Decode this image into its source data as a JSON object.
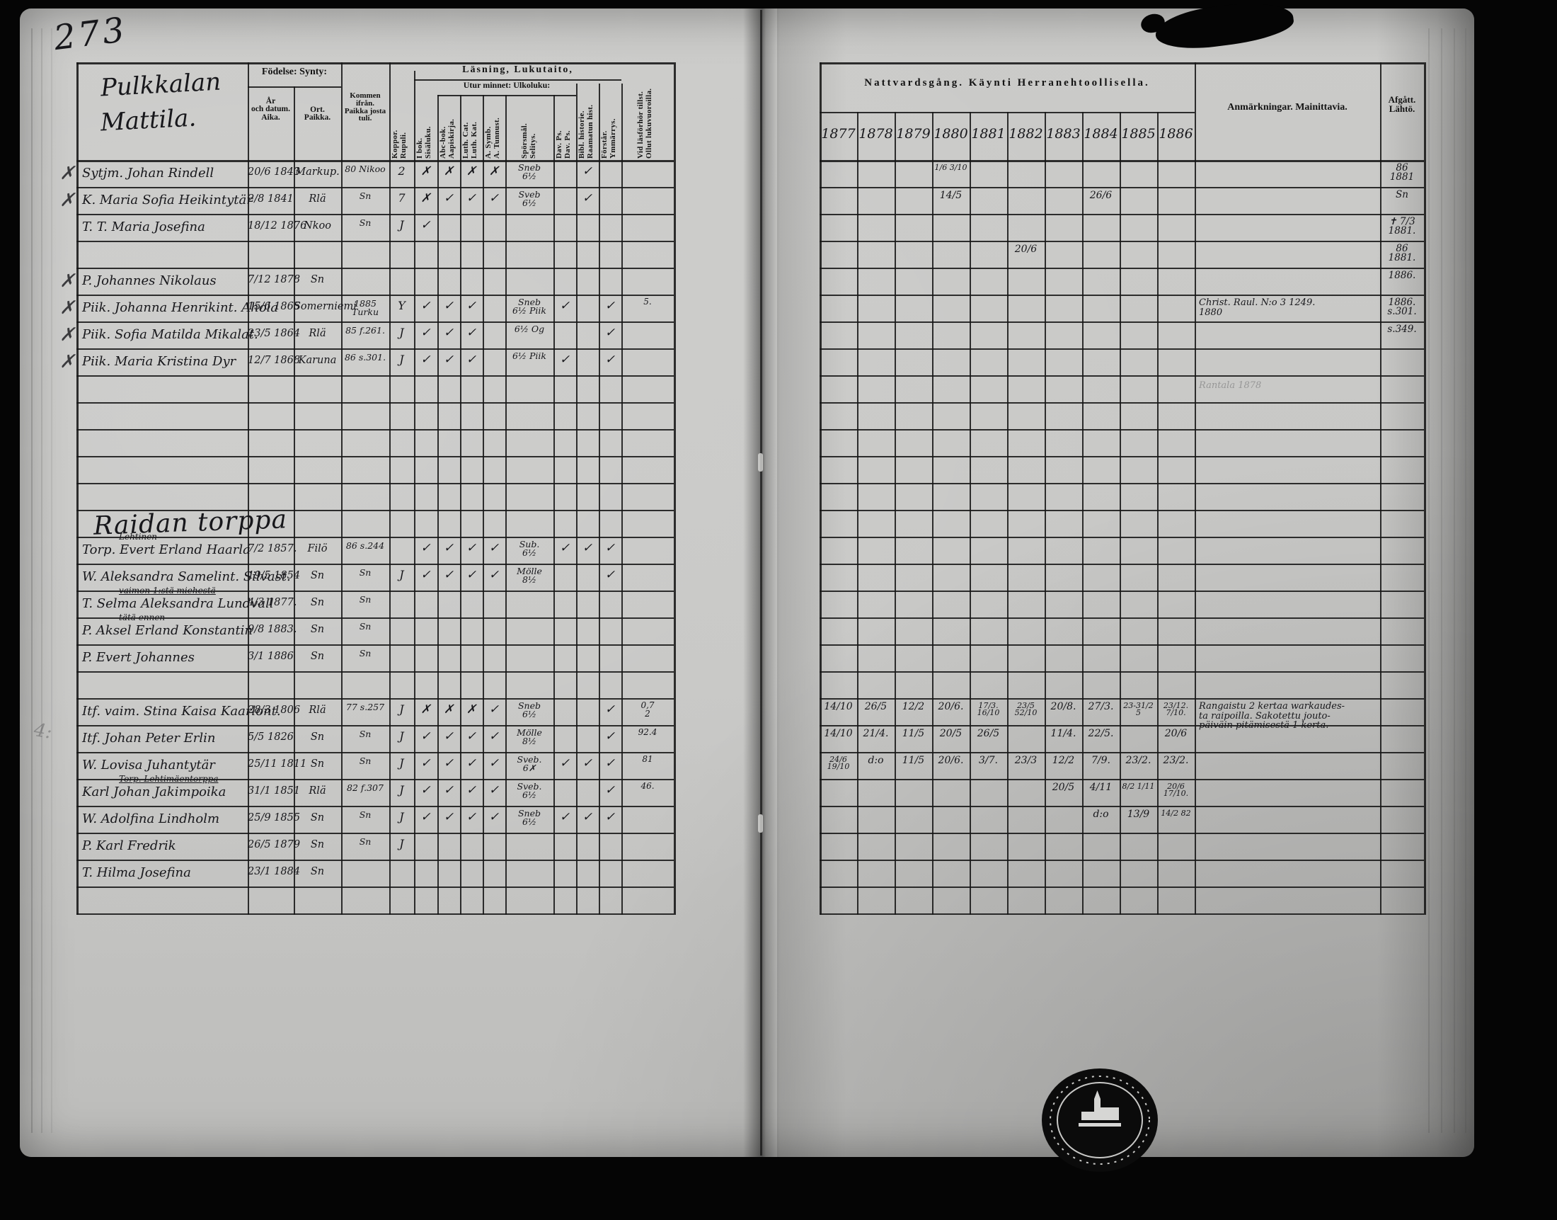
{
  "page": {
    "number": "273"
  },
  "left_page": {
    "heading_line1": "Pulkkalan",
    "heading_line2": "Mattila.",
    "h_fodelse": "Födelse:   Synty:",
    "h_ar": "År\noch datum.\nAika.",
    "h_ort": "Ort.\nPaikka.",
    "h_kommen": "Kommen ifrån.\nPaikka josta\ntuli.",
    "h_lasning": "Läsning,   Lukutaito,",
    "h_utur": "Utur minnet:   Ulkoluku:",
    "cols": [
      {
        "label": "Koppor.\nRupuli."
      },
      {
        "label": "I bok.\nSisäluku."
      },
      {
        "label": "Abc-bok.\nAapiskirja."
      },
      {
        "label": "Luth. Cat.\nLuth. Kat."
      },
      {
        "label": "A. Symb.\nA. Tunnust."
      },
      {
        "label": "Spörsmål.\nSelitys."
      },
      {
        "label": "Dav. Ps.\nDav. Ps."
      },
      {
        "label": "Bibl. historie.\nRaamatun hist."
      },
      {
        "label": "Förstår.\nYmmärrys."
      },
      {
        "label": "Vid läsförhör tillst.\nOllut lukuvuoroilla."
      }
    ]
  },
  "right_page": {
    "h_nattvard": "Nattvardsgång.   Käynti Herranehtoollisella.",
    "years": [
      "1877",
      "1878",
      "1879",
      "1880",
      "1881",
      "1882",
      "1883",
      "1884",
      "1885",
      "1886"
    ],
    "h_anm": "Anmärkningar.   Mainittavia.",
    "h_afgatt": "Afgått.\nLähtö."
  },
  "rows": [
    {
      "pre": "✗",
      "n": "Sytjm. Johan Rindell",
      "b": "20/6 1843",
      "o": "Markup.",
      "f": "80 Nikoo",
      "k": "2",
      "m": [
        "✗",
        "✗",
        "✗",
        "✗"
      ],
      "sp": "Sneb\n6½",
      "bi": "✓",
      "y": [
        "",
        "",
        "",
        "1/6  3/10",
        "",
        "",
        "",
        "",
        "",
        ""
      ],
      "af": "86\n1881"
    },
    {
      "pre": "✗",
      "n": "K. Maria Sofia Heikintytär",
      "b": "2/8 1841",
      "o": "Rlä",
      "f": "Sn",
      "k": "7",
      "m": [
        "✗",
        "✓",
        "✓",
        "✓"
      ],
      "sp": "Sveb\n6½",
      "bi": "✓",
      "y": [
        "",
        "",
        "",
        "14/5",
        "",
        "",
        "",
        "26/6",
        "",
        ""
      ],
      "af": "Sn"
    },
    {
      "n": "T. T. Maria Josefina",
      "b": "18/12 1876",
      "o": "Nkoo",
      "f": "Sn",
      "k": "J",
      "m": [
        "✓",
        "",
        "",
        ""
      ],
      "af": "✝ 7/3 1881."
    },
    {
      "y": [
        "",
        "",
        "",
        "",
        "",
        "20/6",
        "",
        "",
        "",
        ""
      ],
      "af": "86\n1881."
    },
    {
      "pre": "✗",
      "n": "P. Johannes Nikolaus",
      "b": "7/12 1878",
      "o": "Sn",
      "af": "1886."
    },
    {
      "pre": "✗",
      "n": "Piik. Johanna Henrikint. Ahola",
      "b": "15/6 1865",
      "o": "Somerniemi",
      "f": "1885\nTurku",
      "k": "Y",
      "m": [
        "✓",
        "✓",
        "✓",
        ""
      ],
      "sp": "Sneb\n6½ Piik",
      "d": "✓",
      "fo": "✓",
      "v": "5.",
      "a": "Christ. Raul. N:o 3    1249.\n1880",
      "af": "1886.\ns.301."
    },
    {
      "pre": "✗",
      "n": "Piik. Sofia Matilda Mikalat.",
      "b": "23/5 1864",
      "o": "Rlä",
      "f": "85 f.261.",
      "k": "J",
      "m": [
        "✓",
        "✓",
        "✓",
        ""
      ],
      "sp": "6½ Og",
      "fo": "✓",
      "af": "s.349."
    },
    {
      "pre": "✗",
      "n": "Piik. Maria Kristina Dyr",
      "b": "12/7 1868",
      "o": "Karuna",
      "f": "86 s.301.",
      "k": "J",
      "m": [
        "✓",
        "✓",
        "✓",
        ""
      ],
      "sp": "6½ Piik",
      "d": "✓",
      "fo": "✓"
    },
    {
      "fa": "Rantala 1878"
    },
    {},
    {},
    {},
    {},
    {
      "sec": "Raidan torppa"
    },
    {
      "above": "Lehtinen",
      "n": "Torp. Evert Erland Haarla",
      "b": "7/2 1857.",
      "o": "Filö",
      "f": "86 s.244",
      "m": [
        "✓",
        "✓",
        "✓",
        "✓"
      ],
      "sp": "Sub.\n6½",
      "d": "✓",
      "bi": "✓",
      "fo": "✓"
    },
    {
      "n": "W. Aleksandra Samelint. Silvast.",
      "b": "19/5 1854",
      "o": "Sn",
      "f": "Sn",
      "k": "J",
      "m": [
        "✓",
        "✓",
        "✓",
        "✓"
      ],
      "sp": "Mölle\n8½",
      "fo": "✓"
    },
    {
      "above": "vaimon 1:stä miehestä",
      "n": "T. Selma Aleksandra Lundvall",
      "b": "4/3 1877.",
      "o": "Sn",
      "f": "Sn"
    },
    {
      "above": "tätä ennen",
      "n": "P. Aksel Erland Konstantin",
      "b": "9/8 1883.",
      "o": "Sn",
      "f": "Sn"
    },
    {
      "n": "P. Evert Johannes",
      "b": "3/1 1886",
      "o": "Sn",
      "f": "Sn"
    },
    {},
    {
      "n": "Itf. vaim. Stina Kaisa Kaarlont.",
      "b": "28/3 1806",
      "o": "Rlä",
      "f": "77 s.257",
      "k": "J",
      "m": [
        "✗",
        "✗",
        "✗",
        "✓"
      ],
      "sp": "Sneb\n6½",
      "fo": "✓",
      "v": "0,7\n2",
      "y": [
        "14/10",
        "26/5",
        "12/2",
        "20/6.",
        "17/3. 16/10",
        "23/5 52/10",
        "20/8.",
        "27/3.",
        "23-31/2 5",
        "23/12. 7/10."
      ],
      "a": "Rangaistu 2 kertaa warkaudes-\nta raipoilla. Sakotettu jouto-\npäiväin pitämisestä 1 kerta."
    },
    {
      "n": "Itf. Johan Peter Erlin",
      "b": "5/5 1826",
      "o": "Sn",
      "f": "Sn",
      "k": "J",
      "m": [
        "✓",
        "✓",
        "✓",
        "✓"
      ],
      "sp": "Mölle\n8½",
      "fo": "✓",
      "v": "92.4",
      "y": [
        "14/10",
        "21/4.",
        "11/5",
        "20/5",
        "26/5",
        "",
        "11/4.",
        "22/5.",
        "",
        "20/6"
      ]
    },
    {
      "n": "W. Lovisa Juhantytär",
      "b": "25/11 1811",
      "o": "Sn",
      "f": "Sn",
      "k": "J",
      "m": [
        "✓",
        "✓",
        "✓",
        "✓"
      ],
      "sp": "Sveb.\n6✗",
      "d": "✓",
      "bi": "✓",
      "fo": "✓",
      "v": "81",
      "y": [
        "24/6 19/10",
        "d:o",
        "11/5",
        "20/6.",
        "3/7.",
        "23/3",
        "12/2",
        "7/9.",
        "23/2.",
        "23/2."
      ]
    },
    {
      "above": "Torp. Lehtimäentorppa",
      "n": "Karl Johan Jakimpoika",
      "b": "31/1 1851",
      "o": "Rlä",
      "f": "82 f.307",
      "k": "J",
      "m": [
        "✓",
        "✓",
        "✓",
        "✓"
      ],
      "sp": "Sveb.\n6½",
      "fo": "✓",
      "v": "46.",
      "y": [
        "",
        "",
        "",
        "",
        "",
        "",
        "20/5",
        "4/11",
        "8/2 1/11",
        "20/6 17/10."
      ]
    },
    {
      "n": "W. Adolfina Lindholm",
      "b": "25/9 1855",
      "o": "Sn",
      "f": "Sn",
      "k": "J",
      "m": [
        "✓",
        "✓",
        "✓",
        "✓"
      ],
      "sp": "Sneb\n6½",
      "d": "✓",
      "bi": "✓",
      "fo": "✓",
      "y": [
        "",
        "",
        "",
        "",
        "",
        "",
        "",
        "d:o",
        "13/9",
        "14/2 82"
      ]
    },
    {
      "n": "P. Karl Fredrik",
      "b": "26/5 1879",
      "o": "Sn",
      "f": "Sn",
      "k": "J"
    },
    {
      "n": "T. Hilma Josefina",
      "b": "23/1 1884",
      "o": "Sn"
    },
    {}
  ]
}
